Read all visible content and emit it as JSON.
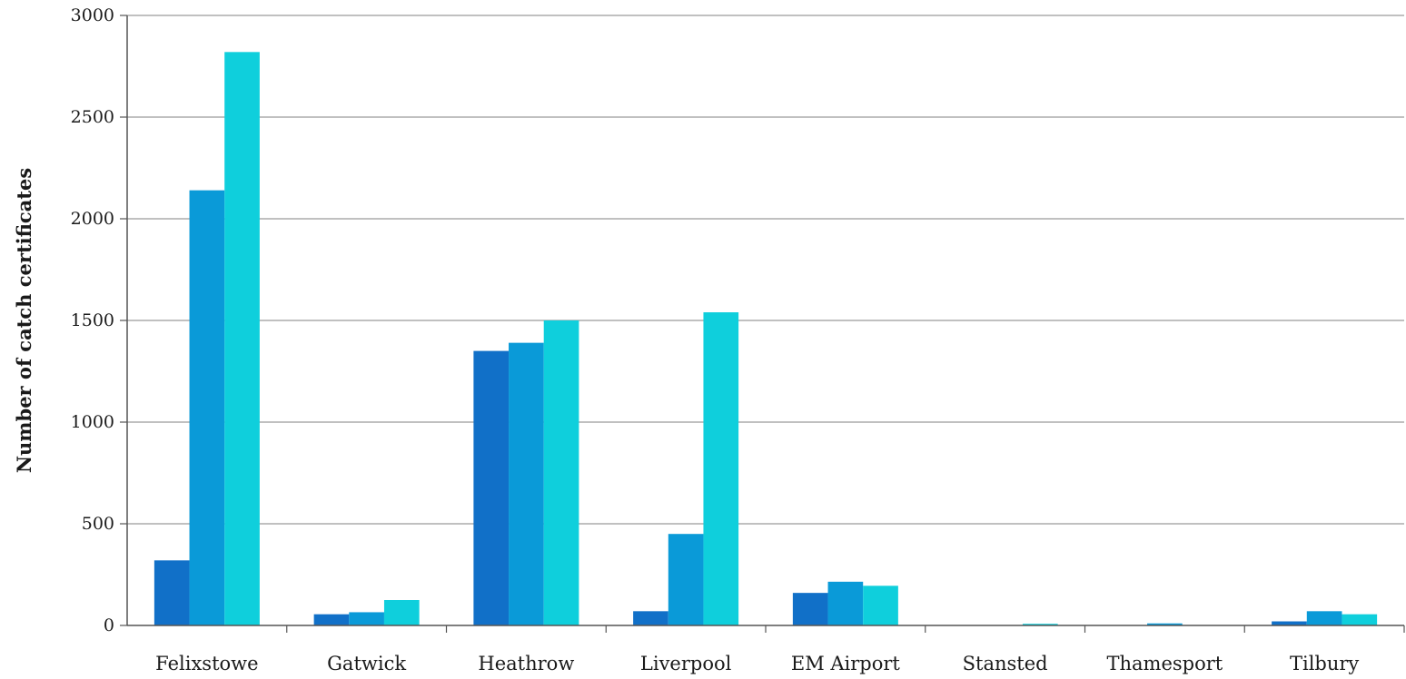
{
  "chart_data": {
    "type": "bar",
    "title": "",
    "xlabel": "",
    "ylabel": "Number of catch certificates",
    "ylim": [
      0,
      3000
    ],
    "yticks": [
      0,
      500,
      1000,
      1500,
      2000,
      2500,
      3000
    ],
    "grid": true,
    "legend": "none",
    "categories": [
      "Felixstowe",
      "Gatwick",
      "Heathrow",
      "Liverpool",
      "EM Airport",
      "Stansted",
      "Thamesport",
      "Tilbury"
    ],
    "series": [
      {
        "color": "#1170c8",
        "values": [
          320,
          55,
          1350,
          70,
          160,
          0,
          0,
          20
        ]
      },
      {
        "color": "#0a9ad8",
        "values": [
          2140,
          65,
          1390,
          450,
          215,
          0,
          10,
          70
        ]
      },
      {
        "color": "#0fcfdc",
        "values": [
          2820,
          125,
          1500,
          1540,
          195,
          8,
          0,
          55
        ]
      }
    ]
  }
}
